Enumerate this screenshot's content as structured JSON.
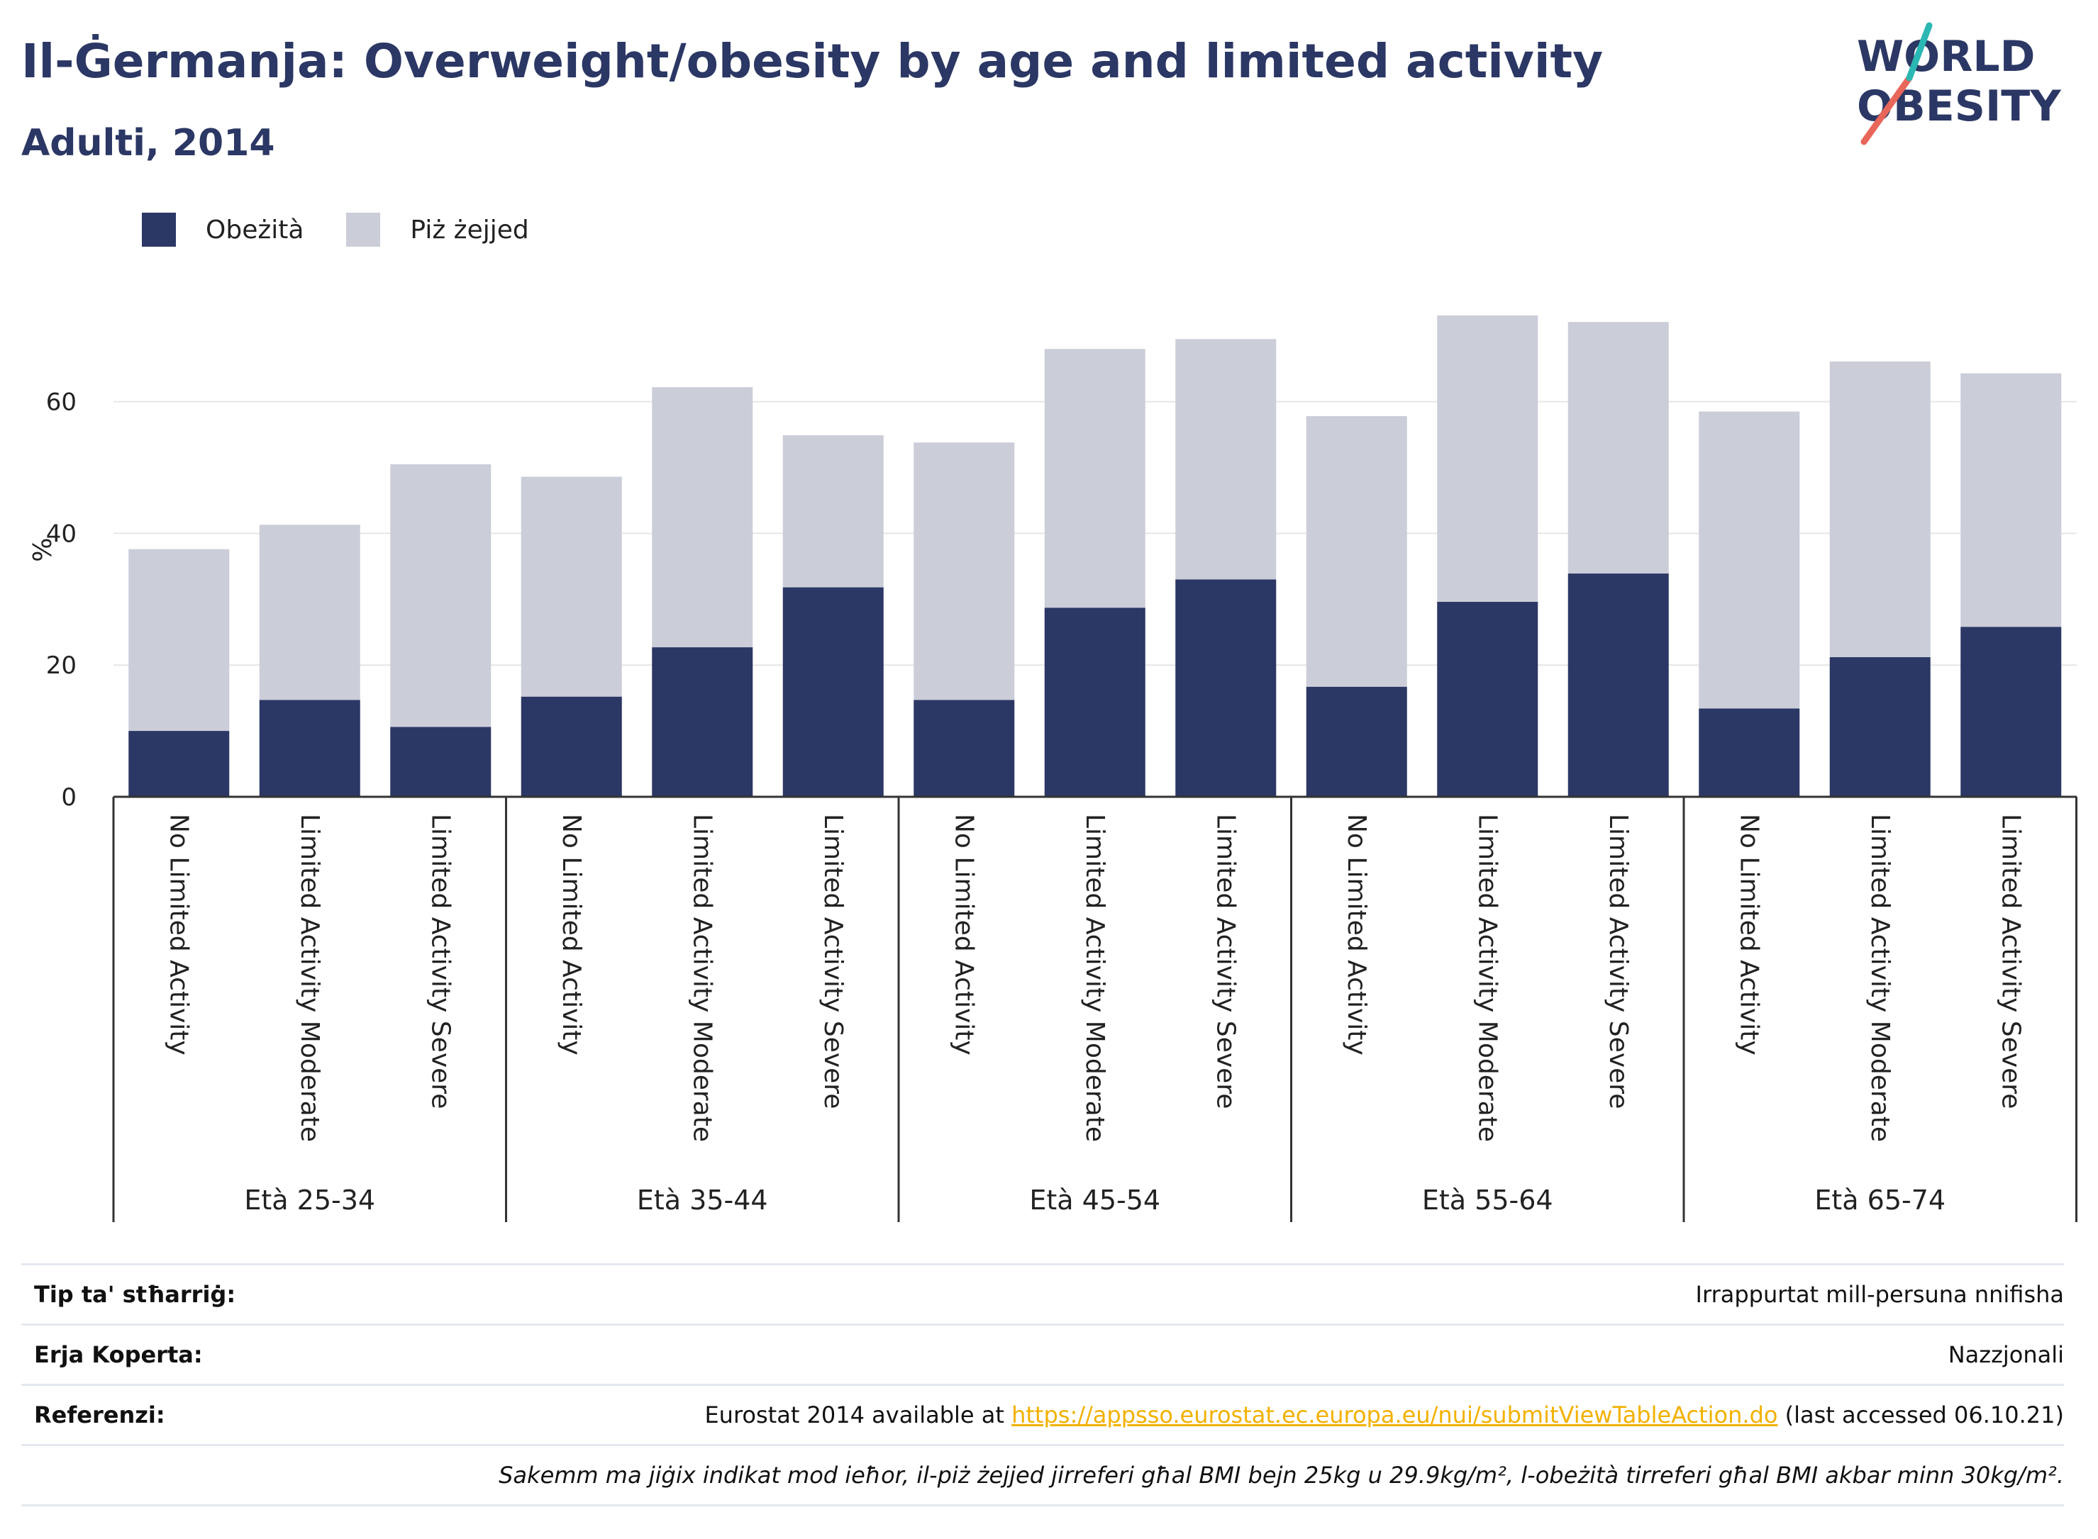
{
  "header": {
    "title": "Il-Ġermanja: Overweight/obesity by age and limited activity",
    "subtitle": "Adulti, 2014"
  },
  "logo": {
    "line1": "WORLD",
    "line2": "OBESITY",
    "colors": {
      "text": "#2b3764",
      "slash_red": "#e8675a",
      "slash_teal": "#2bb7b3"
    }
  },
  "legend": {
    "obesity": "Obeżità",
    "overweight": "Piż żejjed"
  },
  "colors": {
    "obesity": "#2b3764",
    "overweight": "#cbcdd9",
    "grid": "#e6e6e6",
    "axis": "#333333"
  },
  "chart_data": {
    "type": "bar",
    "stacked": true,
    "ylabel": "%",
    "ylim": [
      0,
      75
    ],
    "yticks": [
      0,
      20,
      40,
      60
    ],
    "grid": true,
    "legend_position": "top-left",
    "categories": [
      "No Limited Activity",
      "Limited Activity Moderate",
      "Limited Activity Severe",
      "No Limited Activity",
      "Limited Activity Moderate",
      "Limited Activity Severe",
      "No Limited Activity",
      "Limited Activity Moderate",
      "Limited Activity Severe",
      "No Limited Activity",
      "Limited Activity Moderate",
      "Limited Activity Severe",
      "No Limited Activity",
      "Limited Activity Moderate",
      "Limited Activity Severe"
    ],
    "groups": [
      "Età 25-34",
      "Età 35-44",
      "Età 45-54",
      "Età 55-64",
      "Età 65-74"
    ],
    "series": [
      {
        "name": "Obeżità",
        "values": [
          10.0,
          14.7,
          10.6,
          15.2,
          22.7,
          31.8,
          14.7,
          28.7,
          33.0,
          16.7,
          29.6,
          33.9,
          13.4,
          21.2,
          25.8
        ]
      },
      {
        "name": "Piż żejjed",
        "values": [
          27.6,
          26.6,
          39.9,
          33.4,
          39.5,
          23.1,
          39.1,
          39.3,
          36.5,
          41.1,
          43.5,
          38.2,
          45.1,
          44.9,
          38.5
        ]
      }
    ]
  },
  "table": {
    "rows": [
      {
        "label": "Tip ta' stħarriġ:",
        "value": "Irrappurtat mill-persuna nnifisha"
      },
      {
        "label": "Erja Koperta:",
        "value": "Nazzjonali"
      },
      {
        "label": "Referenzi:",
        "value_pre": "Eurostat 2014 available at ",
        "link": "https://appsso.eurostat.ec.europa.eu/nui/submitViewTableAction.do",
        "value_post": " (last accessed 06.10.21)"
      }
    ],
    "note": "Sakemm ma jiġix indikat mod ieħor, il-piż żejjed jirreferi għal BMI bejn 25kg u 29.9kg/m², l-obeżità tirreferi għal BMI akbar minn 30kg/m²."
  }
}
